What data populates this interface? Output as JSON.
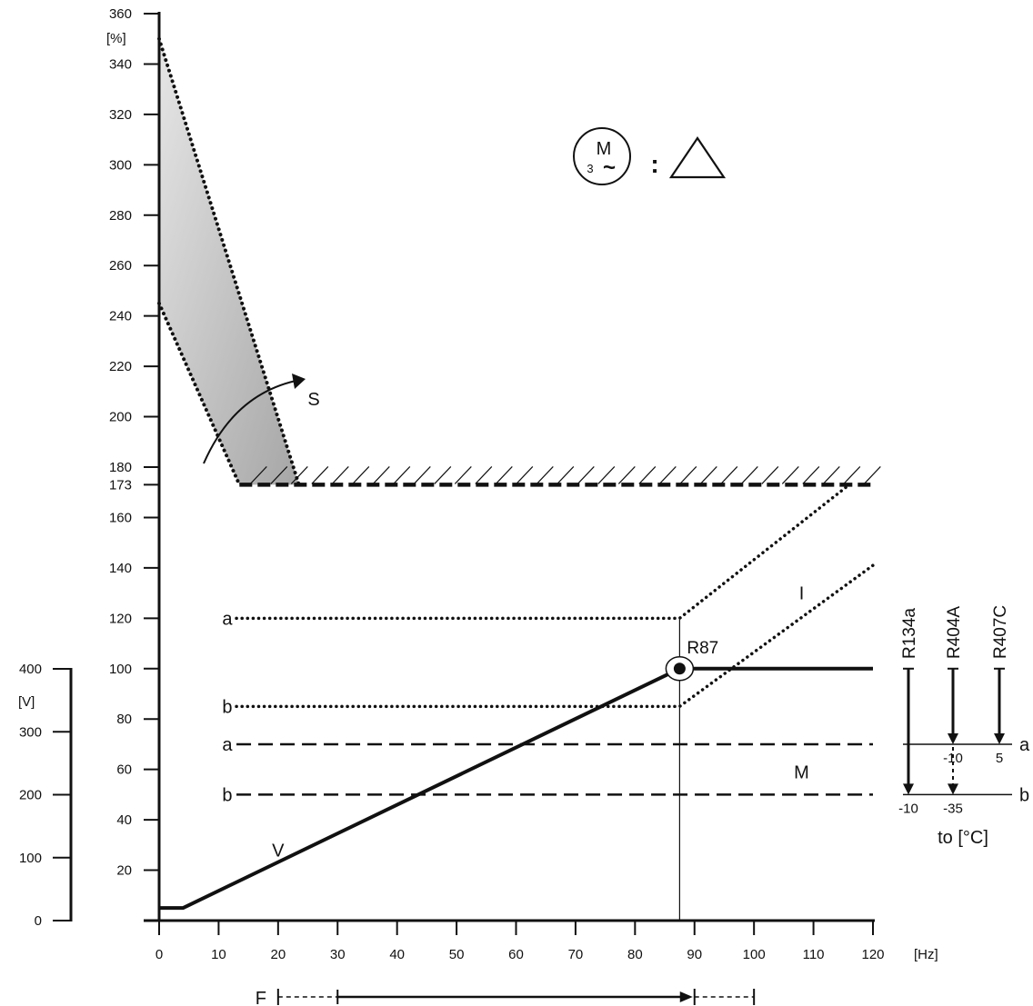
{
  "colors": {
    "ink": "#111111",
    "shade_top": "#e6e6e6",
    "shade_bottom": "#a6a6a6",
    "background": "#ffffff"
  },
  "chart_data": {
    "type": "line",
    "y_axis": {
      "unit": "[%]",
      "range": [
        0,
        360
      ],
      "ticks": [
        20,
        40,
        60,
        80,
        100,
        120,
        140,
        160,
        173,
        180,
        200,
        220,
        240,
        260,
        280,
        300,
        320,
        340,
        360
      ]
    },
    "v_axis": {
      "unit": "[V]",
      "range": [
        0,
        400
      ],
      "ticks": [
        0,
        100,
        200,
        300,
        400
      ]
    },
    "x_axis": {
      "unit": "[Hz]",
      "range": [
        0,
        120
      ],
      "ticks": [
        0,
        10,
        20,
        30,
        40,
        50,
        60,
        70,
        80,
        90,
        100,
        110,
        120
      ]
    },
    "motor_symbol": {
      "letter": "M",
      "phase": "3",
      "wave": "~",
      "separator": ":"
    },
    "series": [
      {
        "name": "V",
        "style": "solid",
        "points": [
          [
            0,
            5
          ],
          [
            4,
            5
          ],
          [
            87.5,
            100
          ],
          [
            120,
            100
          ]
        ]
      },
      {
        "name": "S",
        "style": "dotted-band",
        "upper": [
          [
            0,
            350
          ],
          [
            23.5,
            173
          ]
        ],
        "lower": [
          [
            0,
            245
          ],
          [
            13.5,
            173
          ]
        ]
      },
      {
        "name": "",
        "style": "dashed-limit",
        "points": [
          [
            13.5,
            173
          ],
          [
            120,
            173
          ]
        ]
      },
      {
        "name": "I a",
        "style": "dotted",
        "points": [
          [
            13,
            120
          ],
          [
            87.5,
            120
          ],
          [
            116,
            173
          ]
        ]
      },
      {
        "name": "I b",
        "style": "dotted",
        "points": [
          [
            13,
            85
          ],
          [
            87.5,
            85
          ],
          [
            120,
            141
          ]
        ]
      },
      {
        "name": "M a",
        "style": "dashed",
        "points": [
          [
            13,
            70
          ],
          [
            120,
            70
          ]
        ]
      },
      {
        "name": "M b",
        "style": "dashed",
        "points": [
          [
            13,
            50
          ],
          [
            120,
            50
          ]
        ]
      }
    ],
    "curve_labels": [
      {
        "text": "S",
        "x": 26,
        "y": 207
      },
      {
        "text": "I",
        "x": 108,
        "y": 130
      },
      {
        "text": "M",
        "x": 108,
        "y": 59
      },
      {
        "text": "V",
        "x": 20,
        "y": 28
      },
      {
        "text": "a",
        "x": 12.3,
        "y": 120
      },
      {
        "text": "b",
        "x": 12.3,
        "y": 85
      },
      {
        "text": "a",
        "x": 12.3,
        "y": 70
      },
      {
        "text": "b",
        "x": 12.3,
        "y": 50
      }
    ],
    "rated_point": {
      "label": "R87",
      "x": 87.5,
      "y": 100
    },
    "frequency_range": {
      "label": "F",
      "dashed_from": 20,
      "solid_from": 30,
      "solid_to": 90,
      "dashed_to": 100
    },
    "refrigerant_legend": {
      "refrigerants": [
        "R134a",
        "R404A",
        "R407C"
      ],
      "levels": [
        "a",
        "b"
      ],
      "temperatures": {
        "R134a": "-10",
        "R404A_a": "-10",
        "R404A_b": "-35",
        "R407C": "5"
      },
      "axis_label": "to [°C]"
    }
  }
}
